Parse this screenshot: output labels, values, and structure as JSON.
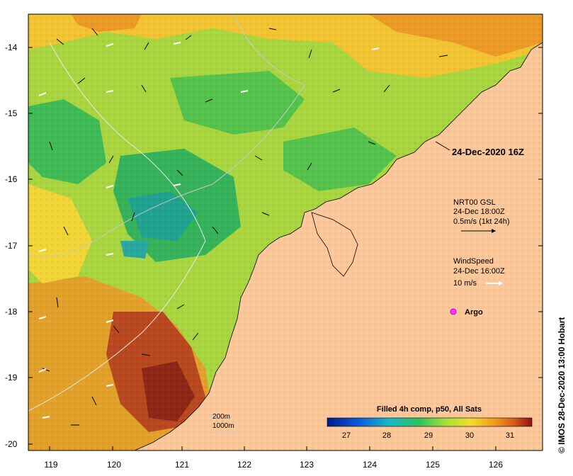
{
  "map": {
    "x_ticks": [
      "119",
      "120",
      "121",
      "122",
      "123",
      "124",
      "125",
      "126"
    ],
    "y_ticks": [
      "-14",
      "-15",
      "-16",
      "-17",
      "-18",
      "-19",
      "-20"
    ],
    "timestamp": "24-Dec-2020 16Z",
    "current_product": "NRT00 GSL",
    "current_time": "24-Dec 18:00Z",
    "current_scale": "0.5m/s (1kt 24h)",
    "wind_title": "WindSpeed",
    "wind_time": "24-Dec 16:00Z",
    "wind_scale": "10 m/s",
    "argo_label": "Argo",
    "depth_200": "200m",
    "depth_1000": "1000m",
    "colorbar_title": "Filled 4h comp, p50, All Sats",
    "colorbar_ticks": [
      "27",
      "28",
      "29",
      "30",
      "31"
    ],
    "credit": "© IMOS 28-Dec-2020 13:00 Hobart"
  },
  "colors": {
    "land": "#fcc89a",
    "ocean_warm": "#f2c02c",
    "ocean_mid": "#9fd441",
    "ocean_cool": "#2fb35c",
    "ocean_hot": "#b4441c"
  }
}
